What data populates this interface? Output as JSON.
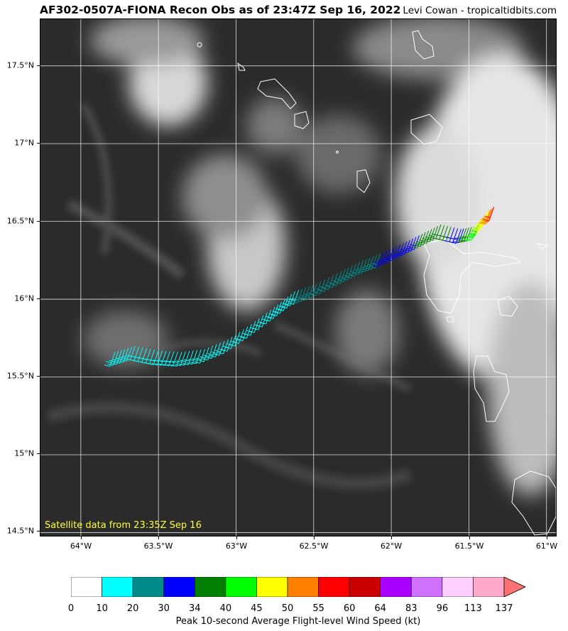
{
  "header": {
    "title": "AF302-0507A-FIONA Recon Obs as of 23:47Z Sep 16, 2022",
    "credit": "Levi Cowan - tropicaltidbits.com"
  },
  "map": {
    "satellite_note": "Satellite data from 23:35Z Sep 16",
    "lat_ticks": [
      "17.5°N",
      "17°N",
      "16.5°N",
      "16°N",
      "15.5°N",
      "15°N",
      "14.5°N"
    ],
    "lon_ticks": [
      "64°W",
      "63.5°W",
      "63°W",
      "62.5°W",
      "62°W",
      "61.5°W",
      "61°W"
    ],
    "lat_values": [
      17.5,
      17.0,
      16.5,
      16.0,
      15.5,
      15.0,
      14.5
    ],
    "lon_values": [
      -64.0,
      -63.5,
      -63.0,
      -62.5,
      -62.0,
      -61.5,
      -61.0
    ],
    "lon_range": [
      -64.26,
      -60.93
    ],
    "lat_range": [
      14.47,
      17.8
    ],
    "obs_track": [
      {
        "lon": -63.78,
        "lat": 15.66,
        "kt": 12
      },
      {
        "lon": -63.65,
        "lat": 15.7,
        "kt": 12
      },
      {
        "lon": -63.5,
        "lat": 15.67,
        "kt": 14
      },
      {
        "lon": -63.35,
        "lat": 15.66,
        "kt": 15
      },
      {
        "lon": -63.2,
        "lat": 15.68,
        "kt": 15
      },
      {
        "lon": -63.05,
        "lat": 15.74,
        "kt": 16
      },
      {
        "lon": -62.9,
        "lat": 15.84,
        "kt": 17
      },
      {
        "lon": -62.75,
        "lat": 15.95,
        "kt": 18
      },
      {
        "lon": -62.62,
        "lat": 16.05,
        "kt": 19
      },
      {
        "lon": -62.48,
        "lat": 16.1,
        "kt": 22
      },
      {
        "lon": -62.32,
        "lat": 16.18,
        "kt": 24
      },
      {
        "lon": -62.18,
        "lat": 16.25,
        "kt": 26
      },
      {
        "lon": -62.05,
        "lat": 16.3,
        "kt": 30
      },
      {
        "lon": -61.92,
        "lat": 16.36,
        "kt": 33
      },
      {
        "lon": -61.8,
        "lat": 16.42,
        "kt": 34
      },
      {
        "lon": -61.68,
        "lat": 16.48,
        "kt": 36
      },
      {
        "lon": -61.55,
        "lat": 16.45,
        "kt": 32
      },
      {
        "lon": -61.45,
        "lat": 16.47,
        "kt": 42
      },
      {
        "lon": -61.38,
        "lat": 16.56,
        "kt": 48
      },
      {
        "lon": -61.33,
        "lat": 16.6,
        "kt": 57
      }
    ]
  },
  "colorbar": {
    "title": "Peak 10-second Average Flight-level Wind Speed (kt)",
    "labels": [
      "0",
      "10",
      "20",
      "30",
      "34",
      "40",
      "45",
      "50",
      "55",
      "60",
      "64",
      "83",
      "96",
      "113",
      "137"
    ],
    "colors": [
      "#ffffff",
      "#00ffff",
      "#008b8b",
      "#0000ff",
      "#008000",
      "#00ff00",
      "#ffff00",
      "#ff7f00",
      "#ff0000",
      "#cc0000",
      "#aa00ff",
      "#d070ff",
      "#ffd0ff",
      "#ffaacc"
    ],
    "extend_color": "#ff7070"
  }
}
